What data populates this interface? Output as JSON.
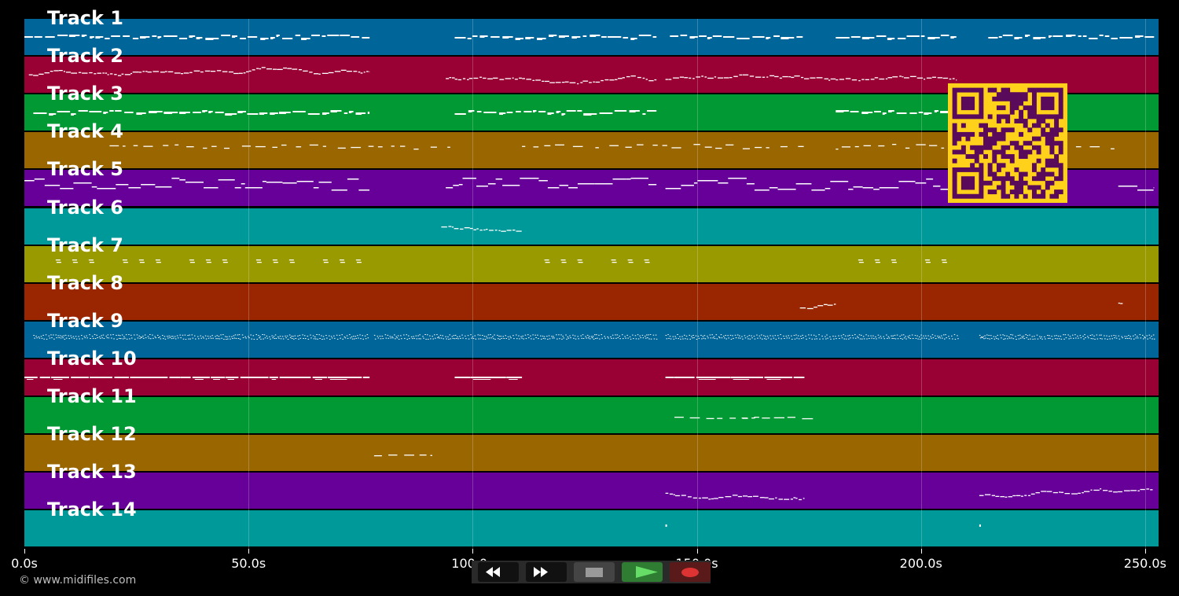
{
  "app": {
    "copyright": "© www.midifiles.com"
  },
  "timeline": {
    "duration_s": 253.0,
    "ticks": [
      {
        "value": 0,
        "label": "0.0s"
      },
      {
        "value": 50,
        "label": "50.0s"
      },
      {
        "value": 100,
        "label": "100.0s"
      },
      {
        "value": 150,
        "label": "150.0s"
      },
      {
        "value": 200,
        "label": "200.0s"
      },
      {
        "value": 250,
        "label": "250.0s"
      }
    ]
  },
  "tracks": [
    {
      "label": "Track 1",
      "color": "#006699",
      "note_style": "block",
      "regions": [
        [
          0,
          77
        ],
        [
          96,
          141
        ],
        [
          144,
          174
        ],
        [
          181,
          208
        ],
        [
          215,
          252
        ]
      ]
    },
    {
      "label": "Track 2",
      "color": "#990033",
      "note_style": "melody",
      "regions": [
        [
          1,
          77
        ],
        [
          94,
          141
        ],
        [
          143,
          208
        ]
      ]
    },
    {
      "label": "Track 3",
      "color": "#009933",
      "note_style": "block",
      "regions": [
        [
          2,
          77
        ],
        [
          96,
          141
        ],
        [
          181,
          208
        ]
      ]
    },
    {
      "label": "Track 4",
      "color": "#996600",
      "note_style": "sparse",
      "regions": [
        [
          19,
          95
        ],
        [
          111,
          174
        ],
        [
          181,
          208
        ],
        [
          230,
          245
        ]
      ]
    },
    {
      "label": "Track 5",
      "color": "#660099",
      "note_style": "bass",
      "regions": [
        [
          0,
          77
        ],
        [
          94,
          141
        ],
        [
          143,
          208
        ],
        [
          244,
          252
        ]
      ]
    },
    {
      "label": "Track 6",
      "color": "#009999",
      "note_style": "melody",
      "regions": [
        [
          93,
          111
        ]
      ]
    },
    {
      "label": "Track 7",
      "color": "#999900",
      "note_style": "pattern",
      "regions": [
        [
          7,
          77
        ],
        [
          116,
          141
        ],
        [
          186,
          208
        ]
      ]
    },
    {
      "label": "Track 8",
      "color": "#992600",
      "note_style": "melody",
      "regions": [
        [
          173,
          181
        ],
        [
          244,
          245
        ]
      ]
    },
    {
      "label": "Track 9",
      "color": "#006699",
      "note_style": "dense",
      "regions": [
        [
          2,
          77
        ],
        [
          78,
          141
        ],
        [
          143,
          208
        ],
        [
          213,
          252
        ]
      ]
    },
    {
      "label": "Track 10",
      "color": "#990033",
      "note_style": "long",
      "regions": [
        [
          0,
          77
        ],
        [
          96,
          111
        ],
        [
          143,
          174
        ]
      ]
    },
    {
      "label": "Track 11",
      "color": "#009933",
      "note_style": "dashes",
      "regions": [
        [
          145,
          163
        ],
        [
          160,
          176
        ]
      ]
    },
    {
      "label": "Track 12",
      "color": "#996600",
      "note_style": "dashes",
      "regions": [
        [
          78,
          91
        ]
      ]
    },
    {
      "label": "Track 13",
      "color": "#660099",
      "note_style": "melody",
      "regions": [
        [
          143,
          174
        ],
        [
          213,
          252
        ]
      ]
    },
    {
      "label": "Track 14",
      "color": "#009999",
      "note_style": "dot",
      "regions": [
        [
          143,
          144
        ],
        [
          213,
          214
        ]
      ]
    }
  ],
  "transport": {
    "buttons": [
      {
        "name": "rewind-button",
        "icon": "rewind-icon",
        "bg": "#111111",
        "fg": "#ffffff"
      },
      {
        "name": "fast-forward-button",
        "icon": "fast-forward-icon",
        "bg": "#111111",
        "fg": "#ffffff"
      },
      {
        "name": "stop-button",
        "icon": "stop-icon",
        "bg": "#444444",
        "fg": "#999999"
      },
      {
        "name": "play-button",
        "icon": "play-icon",
        "bg": "#2e7d32",
        "fg": "#66dd66"
      },
      {
        "name": "record-button",
        "icon": "record-icon",
        "bg": "#5a1a1a",
        "fg": "#dd3333"
      }
    ]
  },
  "qr_code": {
    "fg": "#5a0a5a",
    "bg": "#ffd11a"
  }
}
